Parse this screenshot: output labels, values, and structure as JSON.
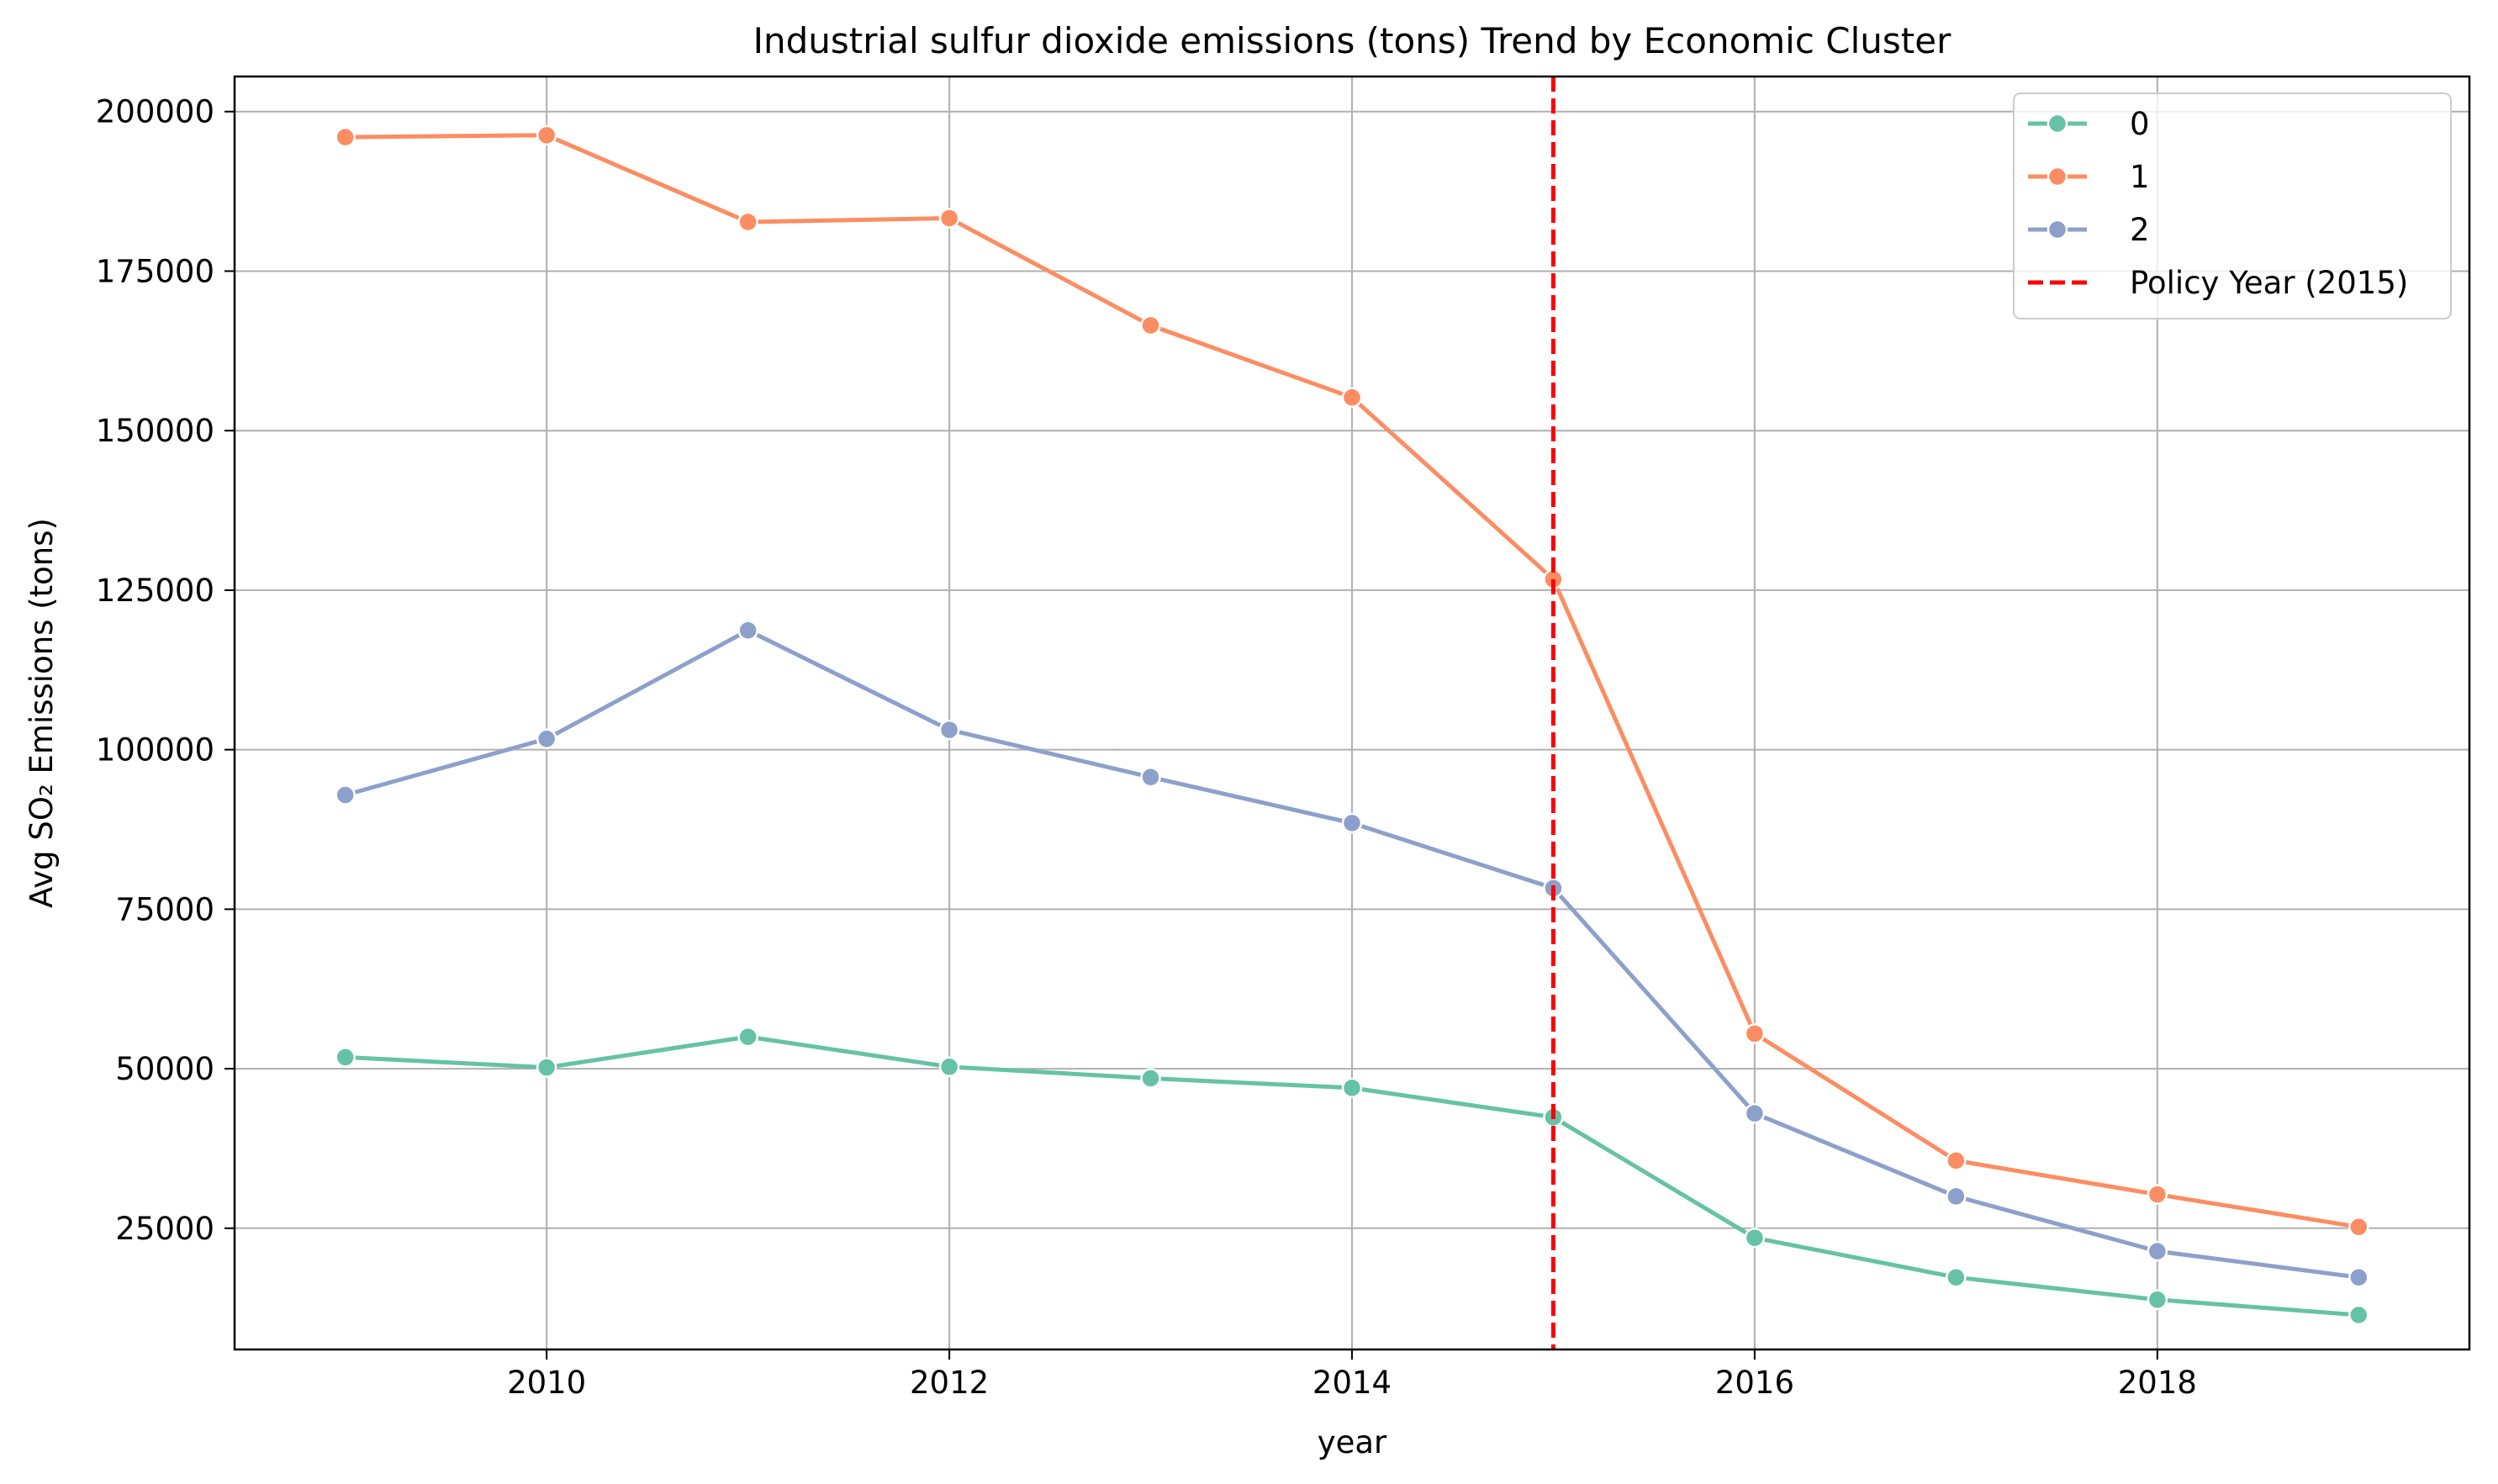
{
  "chart_data": {
    "type": "line",
    "title": "Industrial sulfur dioxide emissions (tons) Trend by Economic Cluster",
    "xlabel": "year",
    "ylabel": "Avg SO₂ Emissions (tons)",
    "x": [
      2009,
      2010,
      2011,
      2012,
      2013,
      2014,
      2015,
      2016,
      2017,
      2018,
      2019
    ],
    "xlim": [
      2008.45,
      2019.55
    ],
    "ylim": [
      6000,
      205500
    ],
    "xticks": [
      2010,
      2012,
      2014,
      2016,
      2018
    ],
    "xtick_labels": [
      "2010",
      "2012",
      "2014",
      "2016",
      "2018"
    ],
    "yticks": [
      25000,
      50000,
      75000,
      100000,
      125000,
      150000,
      175000,
      200000
    ],
    "ytick_labels": [
      "25000",
      "50000",
      "75000",
      "100000",
      "125000",
      "150000",
      "175000",
      "200000"
    ],
    "grid": true,
    "legend_position": "top-right",
    "series": [
      {
        "name": "0",
        "color": "#66c2a5",
        "values": [
          51800,
          50200,
          55000,
          50300,
          48500,
          47000,
          42400,
          23500,
          17300,
          13800,
          11400
        ]
      },
      {
        "name": "1",
        "color": "#fc8d62",
        "values": [
          196000,
          196300,
          182700,
          183300,
          166500,
          155200,
          126700,
          55500,
          35600,
          30300,
          25200
        ]
      },
      {
        "name": "2",
        "color": "#8da0cb",
        "values": [
          92900,
          101700,
          118700,
          103100,
          95700,
          88500,
          78300,
          43000,
          30000,
          21400,
          17300
        ]
      }
    ],
    "vline": {
      "x": 2015,
      "label": "Policy Year (2015)",
      "color": "#ff0000"
    }
  }
}
